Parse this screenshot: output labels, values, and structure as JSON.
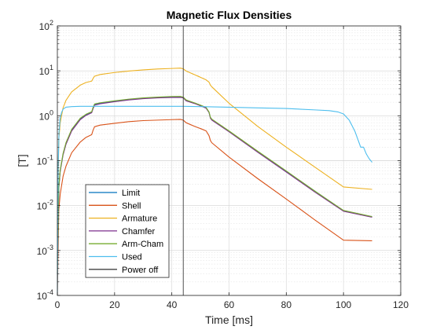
{
  "chart_data": {
    "type": "line",
    "title": "Magnetic Flux Densities",
    "xlabel": "Time [ms]",
    "ylabel": "[T]",
    "xlim": [
      0,
      120
    ],
    "ylim": [
      0.0001,
      100
    ],
    "yscale": "log",
    "grid": "on",
    "legend_position": "lower-left",
    "x_ticks": [
      0,
      20,
      40,
      60,
      80,
      100,
      120
    ],
    "x_tick_labels": [
      "0",
      "20",
      "40",
      "60",
      "80",
      "100",
      "120"
    ],
    "y_ticks": [
      0.0001,
      0.001,
      0.01,
      0.1,
      1,
      10,
      100
    ],
    "y_tick_labels": [
      {
        "base": "10",
        "exp": "-4"
      },
      {
        "base": "10",
        "exp": "-3"
      },
      {
        "base": "10",
        "exp": "-2"
      },
      {
        "base": "10",
        "exp": "-1"
      },
      {
        "base": "10",
        "exp": "0"
      },
      {
        "base": "10",
        "exp": "1"
      },
      {
        "base": "10",
        "exp": "2"
      }
    ],
    "power_off_x": 44,
    "series": [
      {
        "name": "Limit",
        "color": "#0072BD",
        "x": [
          0,
          0.5,
          1,
          2,
          3,
          5,
          8,
          10,
          12,
          12.5,
          13,
          15,
          20,
          25,
          30,
          35,
          40,
          43,
          44,
          45,
          48,
          50,
          52,
          53,
          53.5,
          54,
          60,
          70,
          80,
          90,
          100,
          110
        ],
        "y": [
          0.0003,
          0.025,
          0.06,
          0.14,
          0.24,
          0.48,
          0.85,
          1.05,
          1.2,
          1.5,
          1.78,
          1.9,
          2.1,
          2.3,
          2.45,
          2.55,
          2.6,
          2.62,
          2.55,
          2.2,
          1.9,
          1.7,
          1.5,
          1.2,
          0.9,
          0.82,
          0.45,
          0.16,
          0.058,
          0.021,
          0.0077,
          0.0056
        ]
      },
      {
        "name": "Shell",
        "color": "#D95319",
        "x": [
          0,
          0.5,
          1,
          2,
          3,
          5,
          8,
          10,
          12,
          12.5,
          13,
          15,
          20,
          25,
          30,
          35,
          40,
          43,
          44,
          45,
          48,
          50,
          52,
          53,
          53.5,
          54,
          60,
          70,
          80,
          90,
          100,
          110
        ],
        "y": [
          0.0001,
          0.008,
          0.018,
          0.045,
          0.075,
          0.15,
          0.26,
          0.33,
          0.38,
          0.48,
          0.57,
          0.62,
          0.68,
          0.74,
          0.78,
          0.8,
          0.82,
          0.83,
          0.8,
          0.7,
          0.58,
          0.52,
          0.46,
          0.36,
          0.28,
          0.25,
          0.12,
          0.04,
          0.014,
          0.0048,
          0.0017,
          0.00165
        ]
      },
      {
        "name": "Armature",
        "color": "#EDB120",
        "x": [
          0,
          0.5,
          1,
          2,
          3,
          5,
          8,
          10,
          12,
          12.5,
          13,
          15,
          20,
          25,
          30,
          35,
          40,
          43,
          44,
          45,
          48,
          50,
          52,
          53,
          53.5,
          54,
          60,
          70,
          80,
          90,
          100,
          110
        ],
        "y": [
          0.002,
          0.3,
          0.7,
          1.5,
          2.2,
          3.4,
          4.8,
          5.5,
          5.9,
          6.8,
          7.6,
          8.3,
          9.2,
          9.9,
          10.5,
          11,
          11.3,
          11.5,
          11.1,
          9.9,
          8.2,
          7.2,
          6.3,
          5.6,
          4.8,
          4.4,
          1.9,
          0.58,
          0.2,
          0.072,
          0.026,
          0.023
        ]
      },
      {
        "name": "Chamfer",
        "color": "#7E2F8E",
        "x": [
          0,
          0.5,
          1,
          2,
          3,
          5,
          8,
          10,
          12,
          12.5,
          13,
          15,
          20,
          25,
          30,
          35,
          40,
          43,
          44,
          45,
          48,
          50,
          52,
          53,
          53.5,
          54,
          60,
          70,
          80,
          90,
          100,
          110
        ],
        "y": [
          0.0003,
          0.024,
          0.058,
          0.135,
          0.23,
          0.46,
          0.82,
          1.02,
          1.17,
          1.45,
          1.72,
          1.85,
          2.05,
          2.25,
          2.4,
          2.5,
          2.55,
          2.57,
          2.5,
          2.15,
          1.87,
          1.67,
          1.47,
          1.18,
          0.88,
          0.8,
          0.44,
          0.155,
          0.056,
          0.02,
          0.0075,
          0.0055
        ]
      },
      {
        "name": "Arm-Cham",
        "color": "#77AC30",
        "x": [
          0,
          0.5,
          1,
          2,
          3,
          5,
          8,
          10,
          12,
          12.5,
          13,
          15,
          20,
          25,
          30,
          35,
          40,
          43,
          44,
          45,
          48,
          50,
          52,
          53,
          53.5,
          54,
          60,
          70,
          80,
          90,
          100,
          110
        ],
        "y": [
          0.0003,
          0.026,
          0.062,
          0.145,
          0.25,
          0.5,
          0.88,
          1.08,
          1.23,
          1.55,
          1.83,
          1.95,
          2.15,
          2.35,
          2.5,
          2.6,
          2.68,
          2.7,
          2.6,
          2.25,
          1.93,
          1.73,
          1.53,
          1.22,
          0.92,
          0.84,
          0.46,
          0.163,
          0.059,
          0.021,
          0.0078,
          0.0057
        ]
      },
      {
        "name": "Used",
        "color": "#4DBEEE",
        "x": [
          0,
          0.3,
          0.6,
          1,
          1.5,
          2,
          3,
          5,
          8,
          10,
          20,
          30,
          40,
          44,
          50,
          60,
          70,
          80,
          90,
          95,
          98,
          100,
          102,
          104,
          105,
          106,
          107,
          108,
          109,
          110
        ],
        "y": [
          0.0001,
          0.08,
          0.45,
          0.9,
          1.2,
          1.4,
          1.55,
          1.6,
          1.62,
          1.62,
          1.62,
          1.62,
          1.62,
          1.62,
          1.6,
          1.55,
          1.5,
          1.45,
          1.35,
          1.3,
          1.22,
          1.1,
          0.8,
          0.45,
          0.3,
          0.2,
          0.2,
          0.14,
          0.11,
          0.092
        ]
      },
      {
        "name": "Power off",
        "color": "#404040",
        "vertical": true,
        "x": [
          44,
          44
        ],
        "y": [
          0.0001,
          100
        ]
      }
    ]
  }
}
